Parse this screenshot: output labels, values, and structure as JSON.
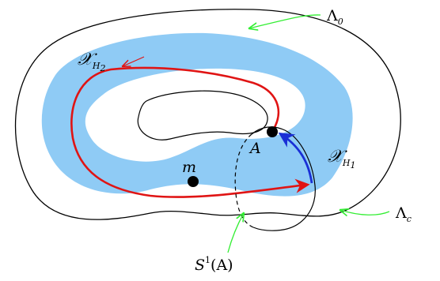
{
  "labels": {
    "lambda0": {
      "base": "Λ",
      "sub": "0"
    },
    "lambdac": {
      "base": "Λ",
      "sub": "c"
    },
    "xh2": {
      "base": "𝒳",
      "sub": "H",
      "subsub": "2"
    },
    "xh1": {
      "base": "𝒳",
      "sub": "H",
      "subsub": "1"
    },
    "m": "m",
    "A": "A",
    "s1": {
      "base": "S",
      "sup": "1",
      "arg": "(A)"
    }
  },
  "colors": {
    "band": "#8fcbf5",
    "red_orbit": "#e01414",
    "blue_arc": "#1a2fd6",
    "pointer": "#33ee33",
    "line": "#000000"
  }
}
